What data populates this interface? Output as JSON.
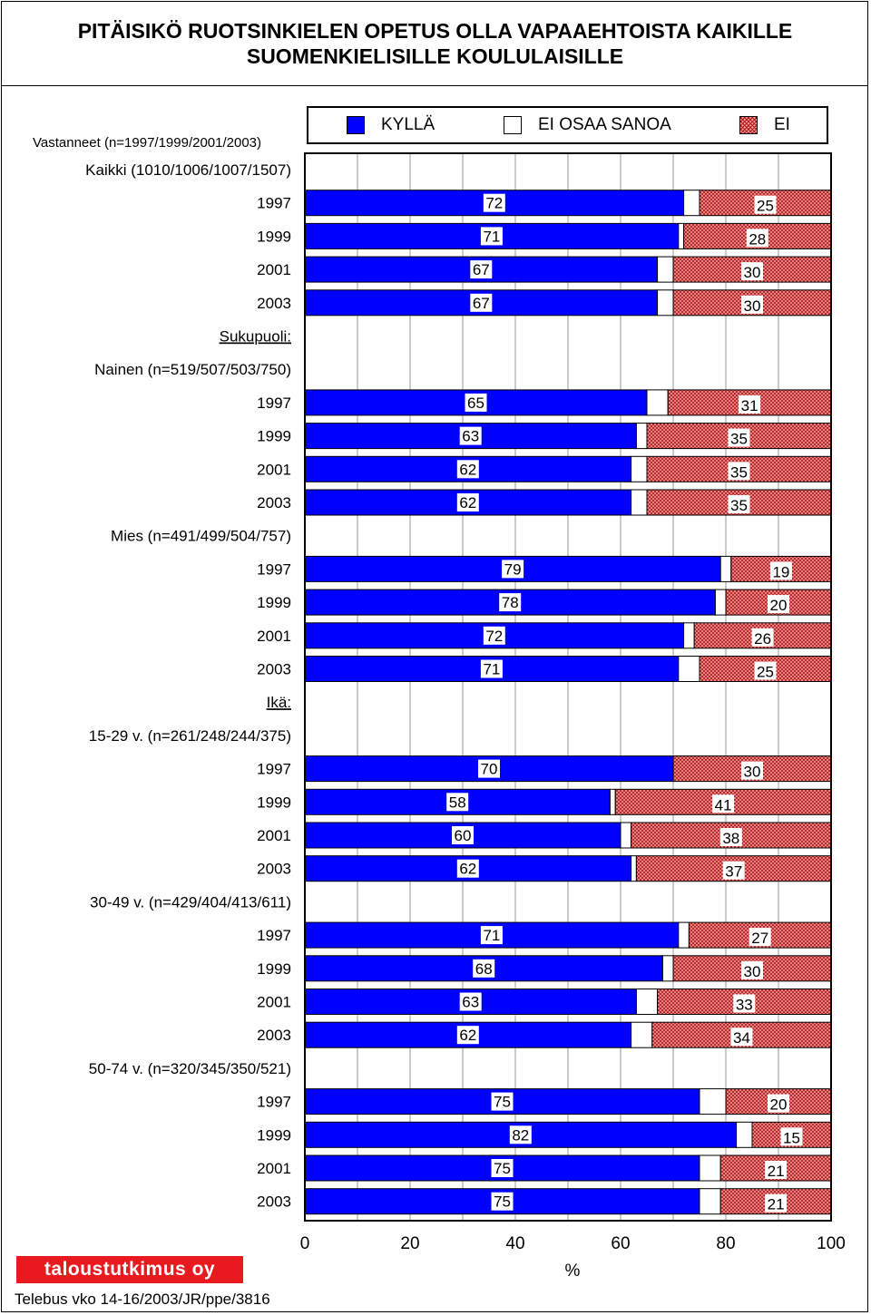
{
  "title": {
    "line1": "PITÄISIKÖ RUOTSINKIELEN OPETUS OLLA VAPAAEHTOISTA KAIKILLE",
    "line2": "SUOMENKIELISILLE KOULULAISILLE"
  },
  "respondents_label": "Vastanneet (n=1997/1999/2001/2003)",
  "logo_text": "taloustutkimus oy",
  "footer_text": "Telebus vko 14-16/2003/JR/ppe/3816",
  "colors": {
    "yes": "#0000ff",
    "dont_know": "#ffffff",
    "no": "#f3a0a0",
    "no_hatch": "#b01818"
  },
  "chart_data": {
    "type": "bar",
    "orientation": "horizontal",
    "stacked": true,
    "xlabel": "%",
    "xlim": [
      0,
      100
    ],
    "xticks": [
      "0",
      "20",
      "40",
      "60",
      "80",
      "100"
    ],
    "grid": true,
    "legend_position": "top",
    "series_names": [
      "KYLLÄ",
      "EI OSAA SANOA",
      "EI"
    ],
    "labels": [
      {
        "text": "Kaikki (1010/1006/1007/1507)",
        "underline": false,
        "align": "right"
      },
      {
        "text": "1997",
        "yes": 72,
        "no": 25
      },
      {
        "text": "1999",
        "yes": 71,
        "no": 28
      },
      {
        "text": "2001",
        "yes": 67,
        "no": 30
      },
      {
        "text": "2003",
        "yes": 67,
        "no": 30
      },
      {
        "text": "Sukupuoli:",
        "underline": true,
        "align": "right"
      },
      {
        "text": "Nainen (n=519/507/503/750)",
        "underline": false,
        "align": "right"
      },
      {
        "text": "1997",
        "yes": 65,
        "no": 31
      },
      {
        "text": "1999",
        "yes": 63,
        "no": 35
      },
      {
        "text": "2001",
        "yes": 62,
        "no": 35
      },
      {
        "text": "2003",
        "yes": 62,
        "no": 35
      },
      {
        "text": "Mies (n=491/499/504/757)",
        "underline": false,
        "align": "right"
      },
      {
        "text": "1997",
        "yes": 79,
        "no": 19
      },
      {
        "text": "1999",
        "yes": 78,
        "no": 20
      },
      {
        "text": "2001",
        "yes": 72,
        "no": 26
      },
      {
        "text": "2003",
        "yes": 71,
        "no": 25
      },
      {
        "text": "Ikä:",
        "underline": true,
        "align": "right"
      },
      {
        "text": "15-29 v. (n=261/248/244/375)",
        "underline": false,
        "align": "right"
      },
      {
        "text": "1997",
        "yes": 70,
        "no": 30
      },
      {
        "text": "1999",
        "yes": 58,
        "no": 41
      },
      {
        "text": "2001",
        "yes": 60,
        "no": 38
      },
      {
        "text": "2003",
        "yes": 62,
        "no": 37
      },
      {
        "text": "30-49 v. (n=429/404/413/611)",
        "underline": false,
        "align": "right"
      },
      {
        "text": "1997",
        "yes": 71,
        "no": 27
      },
      {
        "text": "1999",
        "yes": 68,
        "no": 30
      },
      {
        "text": "2001",
        "yes": 63,
        "no": 33
      },
      {
        "text": "2003",
        "yes": 62,
        "no": 34
      },
      {
        "text": "50-74 v. (n=320/345/350/521)",
        "underline": false,
        "align": "right"
      },
      {
        "text": "1997",
        "yes": 75,
        "no": 20
      },
      {
        "text": "1999",
        "yes": 82,
        "no": 15
      },
      {
        "text": "2001",
        "yes": 75,
        "no": 21
      },
      {
        "text": "2003",
        "yes": 75,
        "no": 21
      }
    ]
  }
}
